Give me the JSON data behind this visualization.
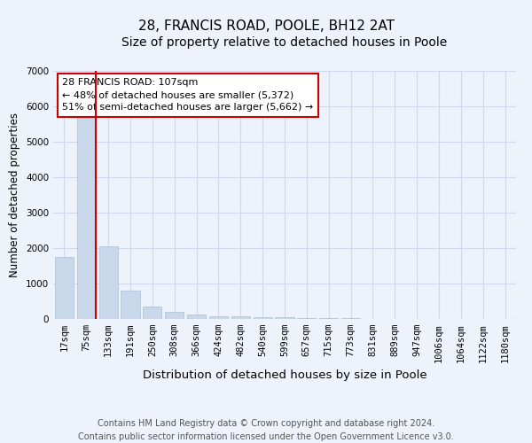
{
  "title": "28, FRANCIS ROAD, POOLE, BH12 2AT",
  "subtitle": "Size of property relative to detached houses in Poole",
  "xlabel": "Distribution of detached houses by size in Poole",
  "ylabel": "Number of detached properties",
  "categories": [
    "17sqm",
    "75sqm",
    "133sqm",
    "191sqm",
    "250sqm",
    "308sqm",
    "366sqm",
    "424sqm",
    "482sqm",
    "540sqm",
    "599sqm",
    "657sqm",
    "715sqm",
    "773sqm",
    "831sqm",
    "889sqm",
    "947sqm",
    "1006sqm",
    "1064sqm",
    "1122sqm",
    "1180sqm"
  ],
  "values": [
    1750,
    5800,
    2050,
    800,
    340,
    200,
    120,
    80,
    65,
    50,
    55,
    30,
    20,
    15,
    10,
    8,
    6,
    5,
    4,
    3,
    3
  ],
  "bar_color": "#c8d8ea",
  "bar_edge_color": "#a8c0d8",
  "vline_x_idx": 1,
  "vline_color": "#cc0000",
  "annotation_text": "28 FRANCIS ROAD: 107sqm\n← 48% of detached houses are smaller (5,372)\n51% of semi-detached houses are larger (5,662) →",
  "annotation_box_color": "#ffffff",
  "annotation_box_edge": "#cc0000",
  "ylim": [
    0,
    7000
  ],
  "yticks": [
    0,
    1000,
    2000,
    3000,
    4000,
    5000,
    6000,
    7000
  ],
  "footer_line1": "Contains HM Land Registry data © Crown copyright and database right 2024.",
  "footer_line2": "Contains public sector information licensed under the Open Government Licence v3.0.",
  "background_color": "#eef2fa",
  "plot_background": "#eef2fa",
  "grid_color": "#d0d8ec",
  "title_fontsize": 11,
  "subtitle_fontsize": 10,
  "xlabel_fontsize": 9.5,
  "ylabel_fontsize": 8.5,
  "tick_fontsize": 7.5,
  "footer_fontsize": 7
}
